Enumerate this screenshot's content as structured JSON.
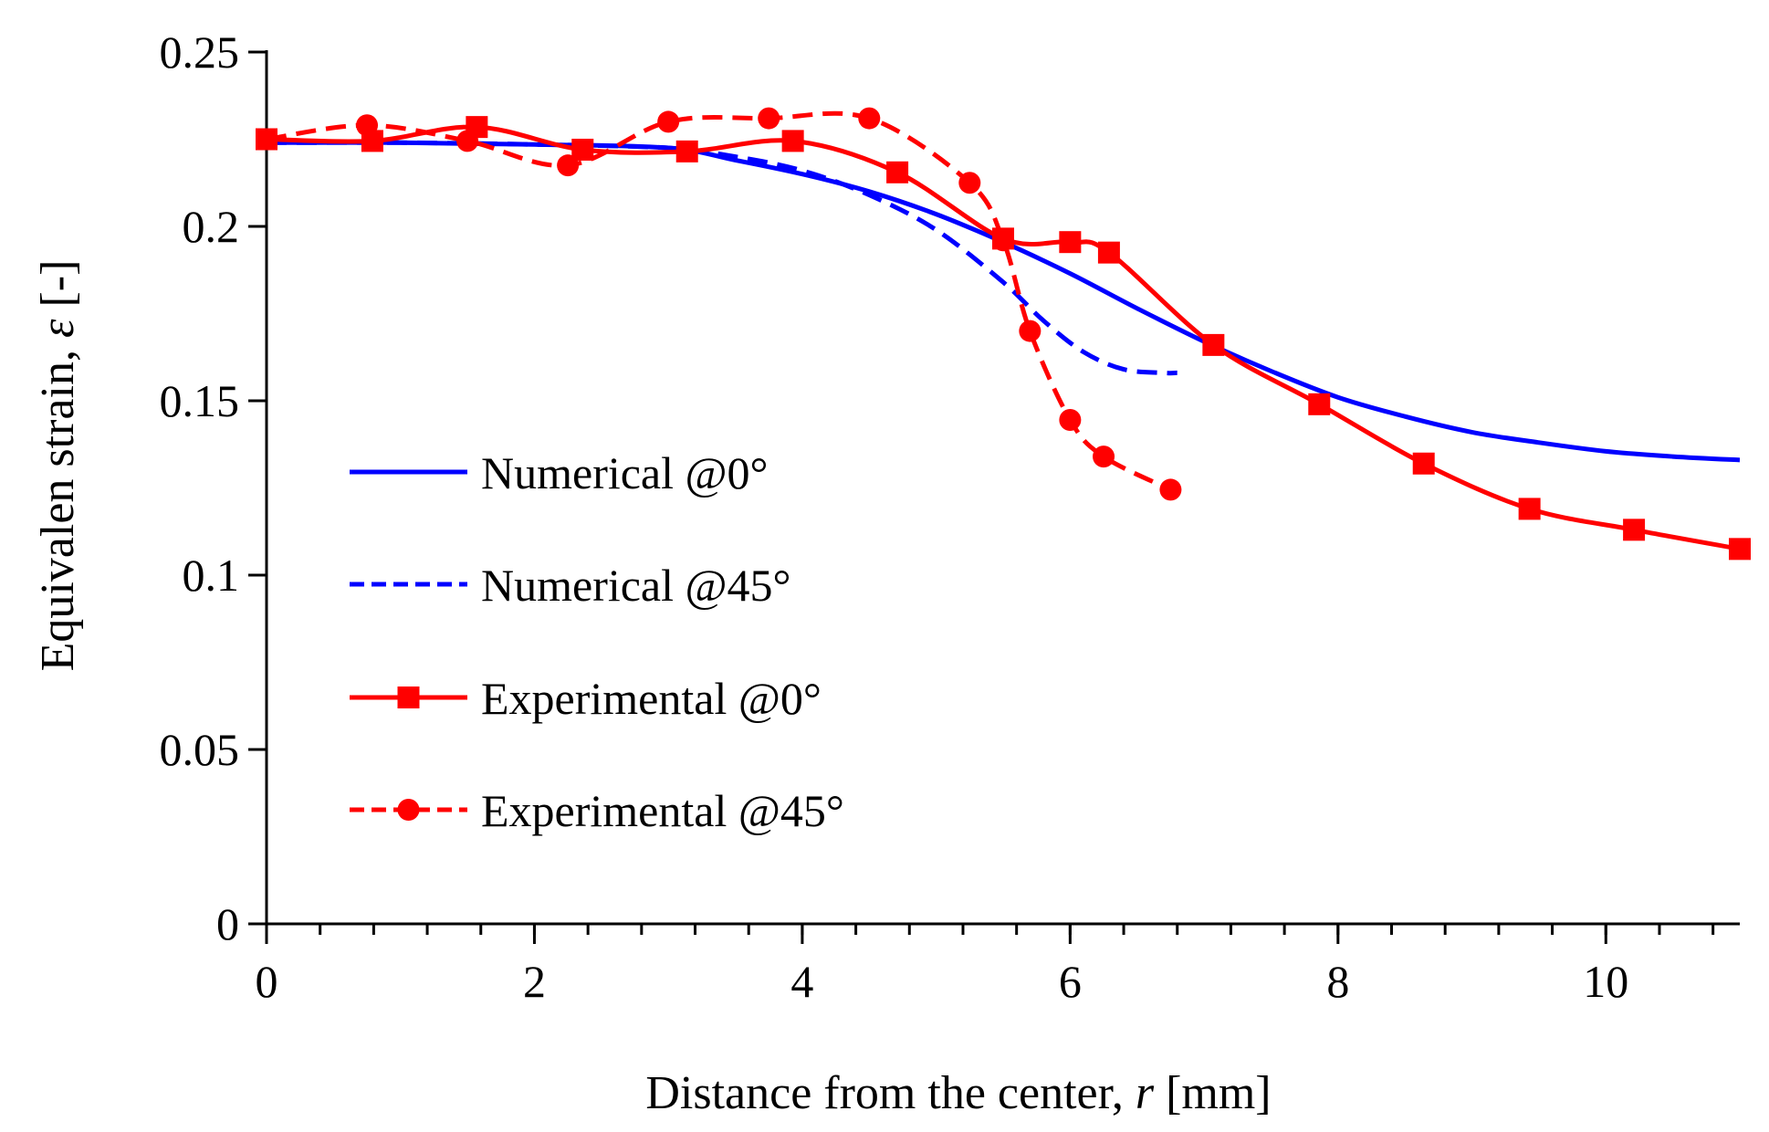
{
  "chart_data": {
    "type": "line",
    "title": "",
    "xlabel": "Distance from the center, r [mm]",
    "xlabel_parts": {
      "before": "Distance from the center, ",
      "symbol": "r",
      "after": " [mm]"
    },
    "ylabel": "Equivalen strain, ε [-]",
    "ylabel_parts": {
      "before": "Equivalen strain, ",
      "symbol": "ε",
      "after": " [-]"
    },
    "xlim": [
      0,
      11
    ],
    "ylim": [
      0,
      0.25
    ],
    "xticks": [
      0,
      2,
      4,
      6,
      8,
      10
    ],
    "xtick_labels": [
      "0",
      "2",
      "4",
      "6",
      "8",
      "10"
    ],
    "yticks": [
      0,
      0.05,
      0.1,
      0.15,
      0.2,
      0.25
    ],
    "ytick_labels": [
      "0",
      "0.05",
      "0.1",
      "0.15",
      "0.2",
      "0.25"
    ],
    "grid": false,
    "legend_position": "center-left",
    "series": [
      {
        "name": "Numerical @0°",
        "color": "#0000ff",
        "dash": "solid",
        "marker": "none",
        "x": [
          0,
          1,
          2,
          3,
          3.5,
          4,
          4.5,
          5,
          5.5,
          6,
          6.5,
          7,
          7.5,
          8,
          8.5,
          9,
          9.5,
          10,
          10.5,
          11
        ],
        "y": [
          0.224,
          0.224,
          0.2235,
          0.2225,
          0.219,
          0.215,
          0.21,
          0.2035,
          0.1955,
          0.1865,
          0.1765,
          0.167,
          0.1585,
          0.151,
          0.1455,
          0.141,
          0.138,
          0.1355,
          0.134,
          0.133
        ]
      },
      {
        "name": "Numerical @45°",
        "color": "#0000ff",
        "dash": "dashed",
        "marker": "none",
        "x": [
          0,
          1,
          2,
          3,
          3.5,
          4,
          4.5,
          5,
          5.5,
          5.8,
          6.1,
          6.4,
          6.7,
          6.8
        ],
        "y": [
          0.224,
          0.224,
          0.2235,
          0.2225,
          0.22,
          0.216,
          0.209,
          0.199,
          0.184,
          0.173,
          0.164,
          0.159,
          0.158,
          0.158
        ]
      },
      {
        "name": "Experimental @0°",
        "color": "#ff0000",
        "dash": "solid",
        "marker": "square",
        "x": [
          0,
          0.79,
          1.57,
          2.36,
          3.14,
          3.93,
          4.71,
          5.5,
          6.0,
          6.29,
          7.07,
          7.86,
          8.64,
          9.43,
          10.21,
          11.0
        ],
        "y": [
          0.225,
          0.2245,
          0.2285,
          0.222,
          0.2215,
          0.2245,
          0.2155,
          0.1965,
          0.1955,
          0.1925,
          0.166,
          0.149,
          0.132,
          0.119,
          0.113,
          0.1075
        ]
      },
      {
        "name": "Experimental @45°",
        "color": "#ff0000",
        "dash": "dashed",
        "marker": "circle",
        "x": [
          0,
          0.75,
          1.5,
          2.25,
          3.0,
          3.75,
          4.5,
          5.25,
          5.5,
          5.7,
          6.0,
          6.25,
          6.75
        ],
        "y": [
          0.225,
          0.229,
          0.2245,
          0.2175,
          0.23,
          0.231,
          0.231,
          0.2125,
          0.196,
          0.17,
          0.1445,
          0.134,
          0.1245
        ]
      }
    ]
  }
}
